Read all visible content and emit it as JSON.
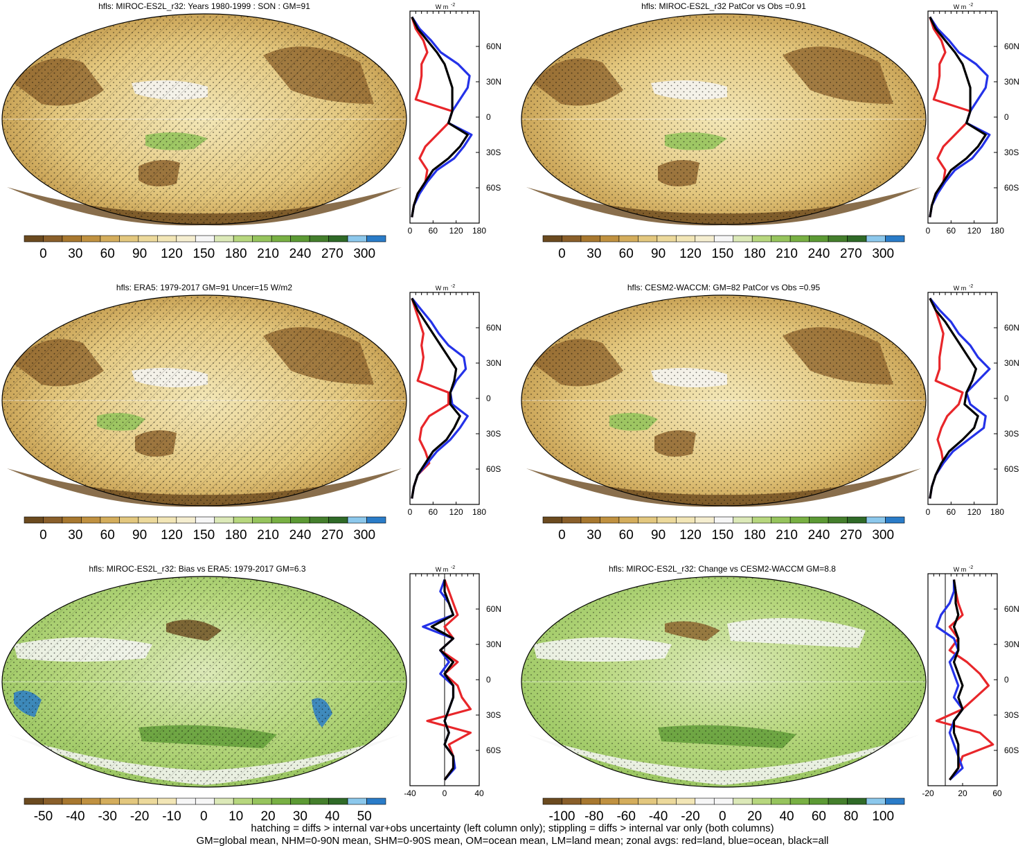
{
  "chart_data": {
    "type": "map_panel_grid",
    "variable": "hfls",
    "units_label": "W m-2",
    "colors": {
      "land": "#e8262a",
      "ocean": "#2432e8",
      "all": "#000000",
      "abs_palette": [
        "#6b4a1f",
        "#8a5f2a",
        "#a8782f",
        "#c09140",
        "#d4ad5c",
        "#e3c77e",
        "#ecd99b",
        "#f2e6b6",
        "#f5eed0",
        "#f6f6f6",
        "#dce9b8",
        "#b7d77e",
        "#96c45d",
        "#78b043",
        "#5c9a34",
        "#447f2c",
        "#2f6a27",
        "#8cc8ec",
        "#2a7cc8"
      ],
      "diff_palette": [
        "#6b4a1f",
        "#8a5f2a",
        "#a8782f",
        "#c09140",
        "#d4ad5c",
        "#e3c77e",
        "#ecd99b",
        "#f2e6b6",
        "#f6f6f6",
        "#f6f6f6",
        "#dce9b8",
        "#b7d77e",
        "#96c45d",
        "#78b043",
        "#5c9a34",
        "#447f2c",
        "#2f6a27",
        "#8cc8ec",
        "#2a7cc8"
      ]
    },
    "panels": [
      {
        "id": "model_mean",
        "title": "hfls: MIROC-ES2L_r32: Years 1980-1999 : SON : GM=91",
        "colorbar_ticks": [
          "0",
          "30",
          "60",
          "90",
          "120",
          "150",
          "180",
          "210",
          "240",
          "270",
          "300"
        ],
        "zonal": {
          "units": "W m",
          "superscript": "-2",
          "xlim": [
            0,
            180
          ],
          "xticks": [
            "0",
            "60",
            "120",
            "180"
          ],
          "lat_ticks": [
            "60N",
            "30N",
            "0",
            "30S",
            "60S"
          ],
          "lat": [
            85,
            75,
            65,
            55,
            45,
            35,
            25,
            15,
            5,
            -5,
            -15,
            -25,
            -35,
            -45,
            -55,
            -65,
            -75,
            -85
          ],
          "land": [
            5,
            15,
            35,
            45,
            30,
            30,
            25,
            15,
            110,
            100,
            70,
            40,
            25,
            45,
            40,
            20,
            10,
            5
          ],
          "ocean": [
            5,
            25,
            55,
            80,
            125,
            155,
            150,
            130,
            110,
            100,
            160,
            140,
            115,
            70,
            45,
            25,
            10,
            5
          ],
          "all": [
            5,
            20,
            45,
            70,
            90,
            100,
            110,
            110,
            110,
            100,
            150,
            130,
            100,
            60,
            40,
            20,
            10,
            5
          ]
        }
      },
      {
        "id": "model_patcor",
        "title": "hfls: MIROC-ES2L_r32 PatCor vs Obs =0.91",
        "colorbar_ticks": [
          "0",
          "30",
          "60",
          "90",
          "120",
          "150",
          "180",
          "210",
          "240",
          "270",
          "300"
        ],
        "zonal": {
          "units": "W m",
          "superscript": "-2",
          "xlim": [
            0,
            180
          ],
          "xticks": [
            "0",
            "60",
            "120",
            "180"
          ],
          "lat_ticks": [
            "60N",
            "30N",
            "0",
            "30S",
            "60S"
          ],
          "lat": [
            85,
            75,
            65,
            55,
            45,
            35,
            25,
            15,
            5,
            -5,
            -15,
            -25,
            -35,
            -45,
            -55,
            -65,
            -75,
            -85
          ],
          "land": [
            5,
            15,
            35,
            45,
            30,
            30,
            25,
            15,
            110,
            100,
            70,
            40,
            25,
            45,
            40,
            20,
            10,
            5
          ],
          "ocean": [
            5,
            25,
            55,
            80,
            125,
            155,
            150,
            130,
            110,
            100,
            160,
            140,
            115,
            70,
            45,
            25,
            10,
            5
          ],
          "all": [
            5,
            20,
            45,
            70,
            90,
            100,
            110,
            110,
            110,
            100,
            150,
            130,
            100,
            60,
            40,
            20,
            10,
            5
          ]
        }
      },
      {
        "id": "obs",
        "title": "hfls: ERA5: 1979-2017 GM=91 Uncer=15 W/m2",
        "colorbar_ticks": [
          "0",
          "30",
          "60",
          "90",
          "120",
          "150",
          "180",
          "210",
          "240",
          "270",
          "300"
        ],
        "zonal": {
          "units": "W m",
          "superscript": "-2",
          "xlim": [
            0,
            180
          ],
          "xticks": [
            "0",
            "60",
            "120",
            "180"
          ],
          "lat_ticks": [
            "60N",
            "30N",
            "0",
            "30S",
            "60S"
          ],
          "lat": [
            85,
            75,
            65,
            55,
            45,
            35,
            25,
            15,
            5,
            -5,
            -15,
            -25,
            -35,
            -45,
            -55,
            -65,
            -75,
            -85
          ],
          "land": [
            5,
            15,
            25,
            35,
            30,
            35,
            30,
            20,
            100,
            100,
            50,
            30,
            25,
            40,
            50,
            20,
            10,
            5
          ],
          "ocean": [
            5,
            30,
            55,
            75,
            100,
            140,
            145,
            120,
            105,
            110,
            150,
            130,
            105,
            70,
            45,
            20,
            10,
            5
          ],
          "all": [
            5,
            20,
            40,
            60,
            80,
            100,
            120,
            115,
            105,
            105,
            130,
            115,
            95,
            60,
            40,
            20,
            10,
            5
          ]
        }
      },
      {
        "id": "other_model",
        "title": "hfls: CESM2-WACCM: GM=82 PatCor vs Obs =0.95",
        "colorbar_ticks": [
          "0",
          "30",
          "60",
          "90",
          "120",
          "150",
          "180",
          "210",
          "240",
          "270",
          "300"
        ],
        "zonal": {
          "units": "W m",
          "superscript": "-2",
          "xlim": [
            0,
            180
          ],
          "xticks": [
            "0",
            "60",
            "120",
            "180"
          ],
          "lat_ticks": [
            "60N",
            "30N",
            "0",
            "30S",
            "60S"
          ],
          "lat": [
            85,
            75,
            65,
            55,
            45,
            35,
            25,
            15,
            5,
            -5,
            -15,
            -25,
            -35,
            -45,
            -55,
            -65,
            -75,
            -85
          ],
          "land": [
            5,
            20,
            30,
            40,
            35,
            30,
            30,
            20,
            90,
            80,
            50,
            35,
            25,
            35,
            40,
            20,
            10,
            5
          ],
          "ocean": [
            5,
            30,
            60,
            80,
            110,
            130,
            160,
            130,
            100,
            110,
            150,
            145,
            105,
            65,
            40,
            20,
            10,
            5
          ],
          "all": [
            5,
            20,
            45,
            65,
            85,
            105,
            125,
            115,
            100,
            95,
            130,
            120,
            90,
            55,
            35,
            20,
            10,
            5
          ]
        }
      },
      {
        "id": "bias",
        "title": "hfls: MIROC-ES2L_r32: Bias vs ERA5: 1979-2017  GM=6.3",
        "colorbar_ticks": [
          "-50",
          "-40",
          "-30",
          "-20",
          "-10",
          "0",
          "10",
          "20",
          "30",
          "40",
          "50"
        ],
        "zonal": {
          "units": "W m",
          "superscript": "-2",
          "xlim": [
            -40,
            40
          ],
          "xticks": [
            "-40",
            "0",
            "40"
          ],
          "lat_ticks": [
            "60N",
            "30N",
            "0",
            "30S",
            "60S"
          ],
          "lat": [
            85,
            75,
            65,
            55,
            45,
            35,
            25,
            15,
            5,
            -5,
            -15,
            -25,
            -35,
            -45,
            -55,
            -65,
            -75,
            -85
          ],
          "land": [
            0,
            5,
            10,
            15,
            0,
            10,
            -5,
            15,
            0,
            15,
            20,
            30,
            -20,
            30,
            5,
            10,
            10,
            0
          ],
          "ocean": [
            0,
            -5,
            5,
            10,
            -25,
            10,
            -5,
            5,
            -5,
            10,
            10,
            5,
            0,
            5,
            0,
            10,
            12,
            0
          ],
          "all": [
            0,
            0,
            5,
            10,
            -15,
            10,
            -5,
            10,
            0,
            10,
            10,
            5,
            0,
            5,
            0,
            10,
            10,
            0
          ]
        }
      },
      {
        "id": "change",
        "title": "hfls: MIROC-ES2L_r32: Change vs CESM2-WACCM GM=8.8",
        "colorbar_ticks": [
          "-100",
          "-80",
          "-60",
          "-40",
          "-20",
          "0",
          "20",
          "40",
          "60",
          "80",
          "100"
        ],
        "zonal": {
          "units": "W m",
          "superscript": "-2",
          "xlim": [
            -20,
            60
          ],
          "xticks": [
            "-20",
            "20",
            "60"
          ],
          "lat_ticks": [
            "60N",
            "30N",
            "0",
            "30S",
            "60S"
          ],
          "lat": [
            85,
            75,
            65,
            55,
            45,
            35,
            25,
            15,
            5,
            -5,
            -15,
            -25,
            -35,
            -45,
            -55,
            -65,
            -75,
            -85
          ],
          "land": [
            10,
            12,
            15,
            20,
            5,
            15,
            5,
            25,
            40,
            50,
            35,
            20,
            -10,
            40,
            55,
            20,
            15,
            5
          ],
          "ocean": [
            10,
            10,
            5,
            -5,
            -10,
            10,
            15,
            5,
            10,
            15,
            10,
            20,
            10,
            5,
            10,
            15,
            20,
            5
          ],
          "all": [
            10,
            12,
            12,
            15,
            10,
            15,
            15,
            10,
            15,
            20,
            15,
            20,
            10,
            10,
            15,
            15,
            15,
            5
          ]
        }
      }
    ]
  },
  "footer": {
    "line1": "hatching = diffs > internal var+obs uncertainty (left column only); stippling = diffs > internal var only (both columns)",
    "line2": "GM=global mean, NHM=0-90N mean, SHM=0-90S mean, OM=ocean mean, LM=land mean; zonal avgs: red=land, blue=ocean, black=all"
  }
}
